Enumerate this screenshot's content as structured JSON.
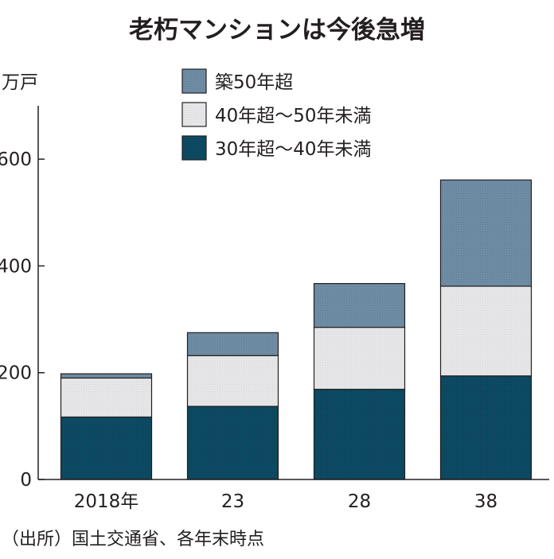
{
  "chart_data": {
    "type": "bar",
    "stacked": true,
    "title": "老朽マンションは今後急増",
    "ylabel": "万戸",
    "xlabel": "",
    "categories": [
      "2018年",
      "23",
      "28",
      "38"
    ],
    "series": [
      {
        "name": "30年超〜40年未満",
        "values": [
          117,
          137,
          169,
          194
        ],
        "color": "#0d4a63"
      },
      {
        "name": "40年超〜50年未満",
        "values": [
          73,
          95,
          116,
          168
        ],
        "color": "#e6e6e8"
      },
      {
        "name": "築50年超",
        "values": [
          8,
          43,
          82,
          199
        ],
        "color": "#6e8ca4"
      }
    ],
    "ylim": [
      0,
      700
    ],
    "yticks": [
      0,
      200,
      400,
      600
    ],
    "grid": false,
    "legend_position": "top"
  },
  "source": "（出所）国土交通省、各年末時点"
}
